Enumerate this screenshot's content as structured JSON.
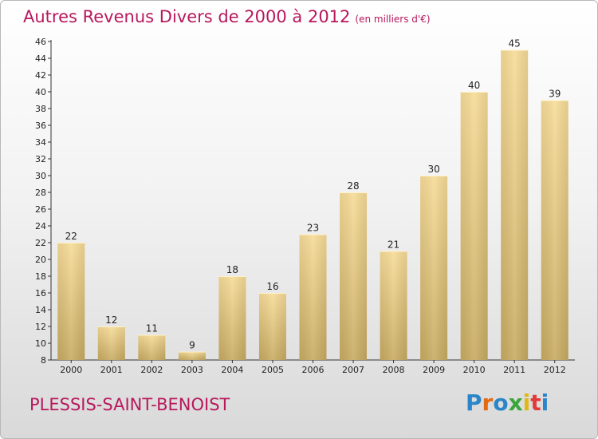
{
  "header": {
    "title": "Autres Revenus Divers de 2000 à 2012",
    "unit": "(en milliers d'€)"
  },
  "footer": {
    "place": "PLESSIS-SAINT-BENOIST",
    "logo": "Proxiti"
  },
  "colors": {
    "title": "#b8185d",
    "bar_top": "#f7dc98",
    "bar_bottom": "#c8ab62",
    "logo": [
      "#2a86c9",
      "#e26a12",
      "#2a86c9",
      "#3aa53a",
      "#e2b712",
      "#e23a3a",
      "#2a86c9"
    ]
  },
  "chart_data": {
    "type": "bar",
    "categories": [
      "2000",
      "2001",
      "2002",
      "2003",
      "2004",
      "2005",
      "2006",
      "2007",
      "2008",
      "2009",
      "2010",
      "2011",
      "2012"
    ],
    "values": [
      22,
      12,
      11,
      9,
      18,
      16,
      23,
      28,
      21,
      30,
      40,
      45,
      39
    ],
    "ylim": [
      8,
      46
    ],
    "yticks": [
      8,
      10,
      12,
      14,
      16,
      18,
      20,
      22,
      24,
      26,
      28,
      30,
      32,
      34,
      36,
      38,
      40,
      42,
      44,
      46
    ],
    "grid": false,
    "data_labels": true
  }
}
